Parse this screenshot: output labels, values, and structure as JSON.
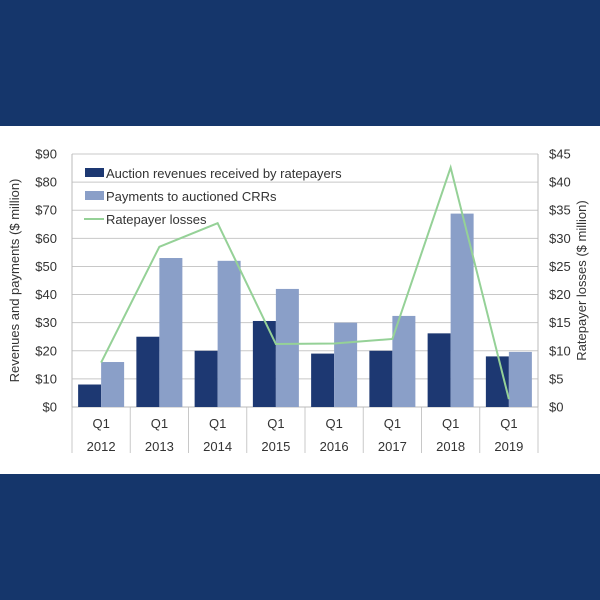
{
  "chart_data": {
    "type": "bar",
    "title": "",
    "categories": [
      "Q1 2012",
      "Q1 2013",
      "Q1 2014",
      "Q1 2015",
      "Q1 2016",
      "Q1 2017",
      "Q1 2018",
      "Q1 2019"
    ],
    "category_quarters": [
      "Q1",
      "Q1",
      "Q1",
      "Q1",
      "Q1",
      "Q1",
      "Q1",
      "Q1"
    ],
    "category_years": [
      "2012",
      "2013",
      "2014",
      "2015",
      "2016",
      "2017",
      "2018",
      "2019"
    ],
    "ylabel": "Revenues and payments ($ million)",
    "ylim": [
      0,
      90
    ],
    "yticks": [
      "$0",
      "$10",
      "$20",
      "$30",
      "$40",
      "$50",
      "$60",
      "$70",
      "$80",
      "$90"
    ],
    "y2label": "Ratepayer losses ($ million)",
    "y2lim": [
      0,
      45
    ],
    "y2ticks": [
      "$0",
      "$5",
      "$10",
      "$15",
      "$20",
      "$25",
      "$30",
      "$35",
      "$40",
      "$45"
    ],
    "grid": true,
    "legend_position": "top-left",
    "series": [
      {
        "name": "Auction revenues received by ratepayers",
        "type": "bar",
        "axis": "left",
        "color": "#1d3872",
        "values": [
          8,
          25,
          20,
          30.6,
          19,
          20,
          26.2,
          18
        ]
      },
      {
        "name": "Payments to auctioned CRRs",
        "type": "bar",
        "axis": "left",
        "color": "#8a9fc8",
        "values": [
          16,
          53,
          52,
          42,
          30,
          32.4,
          68.8,
          19.6
        ]
      },
      {
        "name": "Ratepayer losses",
        "type": "line",
        "axis": "right",
        "color": "#95d197",
        "values": [
          7.9,
          28.5,
          32.7,
          11.2,
          11.3,
          12.1,
          42.6,
          1.4
        ]
      }
    ]
  }
}
